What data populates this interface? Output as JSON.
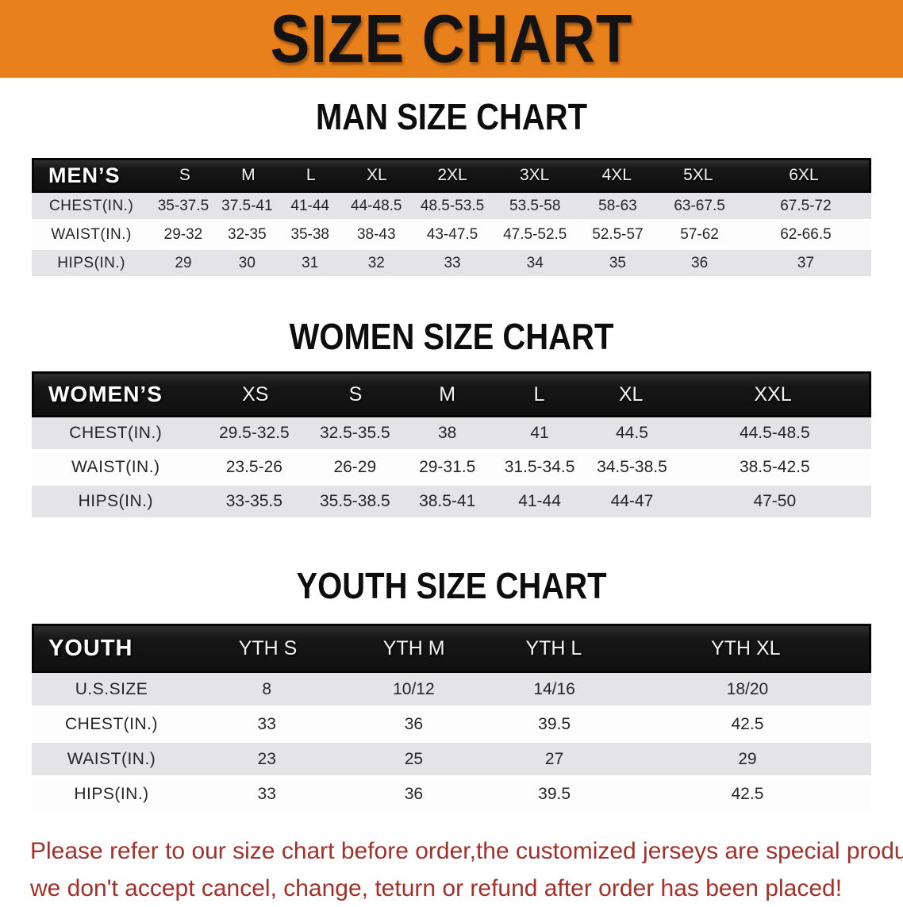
{
  "banner": {
    "title": "SIZE CHART",
    "bg_color": "#E8811B",
    "text_color": "#131313"
  },
  "sections": [
    {
      "heading": "MAN SIZE CHART",
      "table": {
        "header_label": "MEN’S",
        "columns": [
          "S",
          "M",
          "L",
          "XL",
          "2XL",
          "3XL",
          "4XL",
          "5XL",
          "6XL"
        ],
        "rows": [
          {
            "label": "CHEST(IN.)",
            "values": [
              "35-37.5",
              "37.5-41",
              "41-44",
              "44-48.5",
              "48.5-53.5",
              "53.5-58",
              "58-63",
              "63-67.5",
              "67.5-72"
            ]
          },
          {
            "label": "WAIST(IN.)",
            "values": [
              "29-32",
              "32-35",
              "35-38",
              "38-43",
              "43-47.5",
              "47.5-52.5",
              "52.5-57",
              "57-62",
              "62-66.5"
            ]
          },
          {
            "label": "HIPS(IN.)",
            "values": [
              "29",
              "30",
              "31",
              "32",
              "33",
              "34",
              "35",
              "36",
              "37"
            ]
          }
        ]
      }
    },
    {
      "heading": "WOMEN SIZE CHART",
      "table": {
        "header_label": "WOMEN’S",
        "columns": [
          "XS",
          "S",
          "M",
          "L",
          "XL",
          "XXL"
        ],
        "rows": [
          {
            "label": "CHEST(IN.)",
            "values": [
              "29.5-32.5",
              "32.5-35.5",
              "38",
              "41",
              "44.5",
              "44.5-48.5"
            ]
          },
          {
            "label": "WAIST(IN.)",
            "values": [
              "23.5-26",
              "26-29",
              "29-31.5",
              "31.5-34.5",
              "34.5-38.5",
              "38.5-42.5"
            ]
          },
          {
            "label": "HIPS(IN.)",
            "values": [
              "33-35.5",
              "35.5-38.5",
              "38.5-41",
              "41-44",
              "44-47",
              "47-50"
            ]
          }
        ]
      }
    },
    {
      "heading": "YOUTH SIZE CHART",
      "table": {
        "header_label": "YOUTH",
        "columns": [
          "YTH S",
          "YTH M",
          "YTH L",
          "YTH XL"
        ],
        "rows": [
          {
            "label": "U.S.SIZE",
            "values": [
              "8",
              "10/12",
              "14/16",
              "18/20"
            ]
          },
          {
            "label": "CHEST(IN.)",
            "values": [
              "33",
              "36",
              "39.5",
              "42.5"
            ]
          },
          {
            "label": "WAIST(IN.)",
            "values": [
              "23",
              "25",
              "27",
              "29"
            ]
          },
          {
            "label": "HIPS(IN.)",
            "values": [
              "33",
              "36",
              "39.5",
              "42.5"
            ]
          }
        ]
      }
    }
  ],
  "footer": {
    "line1": "Please refer to our size chart before order,the customized jerseys are special products,",
    "line2": "we don't accept cancel, change, teturn or refund after order has been placed!",
    "text_color": "#A33129"
  }
}
